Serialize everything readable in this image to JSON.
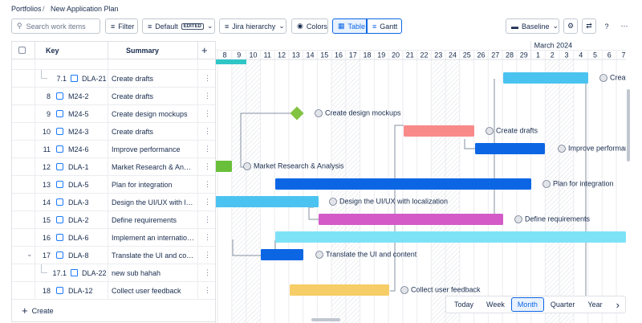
{
  "breadcrumbs": [
    "Portfolios",
    "New Application Plan"
  ],
  "toolbar": {
    "search_placeholder": "Search work items",
    "filter": "Filter",
    "view": "Default",
    "view_badge": "EDITED",
    "hierarchy": "Jira hierarchy",
    "colors": "Colors",
    "table": "Table",
    "gantt": "Gantt",
    "baseline": "Baseline"
  },
  "table": {
    "headers": [
      "Key",
      "Summary"
    ],
    "rows": [
      {
        "number": "7.1",
        "key": "DLA-21",
        "summary": "Create drafts"
      },
      {
        "number": "8",
        "key": "M24-2",
        "summary": "Create drafts"
      },
      {
        "number": "9",
        "key": "M24-5",
        "summary": "Create design mockups"
      },
      {
        "number": "10",
        "key": "M24-3",
        "summary": "Create drafts"
      },
      {
        "number": "11",
        "key": "M24-6",
        "summary": "Improve performance"
      },
      {
        "number": "12",
        "key": "DLA-1",
        "summary": "Market Research & Analysis"
      },
      {
        "number": "13",
        "key": "DLA-5",
        "summary": "Plan for integration"
      },
      {
        "number": "14",
        "key": "DLA-3",
        "summary": "Design the UI/UX with localization"
      },
      {
        "number": "15",
        "key": "DLA-2",
        "summary": "Define requirements"
      },
      {
        "number": "16",
        "key": "DLA-6",
        "summary": "Implement an internationalization framework"
      },
      {
        "number": "17",
        "key": "DLA-8",
        "summary": "Translate the UI and content"
      },
      {
        "number": "17.1",
        "key": "DLA-22",
        "summary": "new sub hahah"
      },
      {
        "number": "18",
        "key": "DLA-12",
        "summary": "Collect user feedback"
      }
    ],
    "create": "Create"
  },
  "timeline": {
    "month": "March 2024",
    "days": [
      8,
      9,
      10,
      11,
      12,
      13,
      14,
      15,
      16,
      17,
      18,
      19,
      20,
      21,
      22,
      23,
      24,
      25,
      26,
      27,
      28,
      29,
      1,
      2,
      3,
      4,
      5,
      6,
      7
    ]
  },
  "zoom": [
    "Today",
    "Week",
    "Month",
    "Quarter",
    "Year"
  ]
}
